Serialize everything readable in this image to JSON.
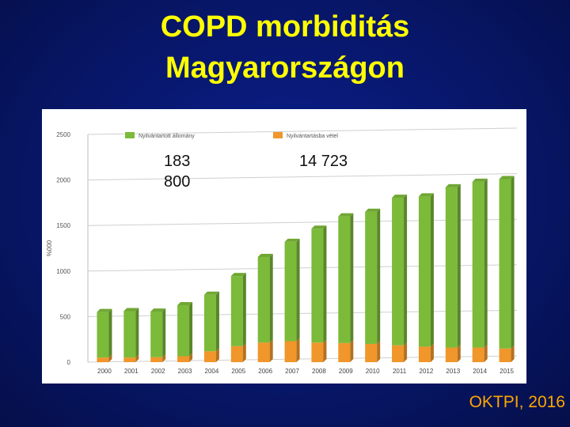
{
  "slide": {
    "title_line1": "COPD morbiditás",
    "title_line2": "Magyarországon",
    "source": "OKTPI, 2016"
  },
  "annotations": {
    "stock_total": "183 800",
    "new_cases": "14 723"
  },
  "colors": {
    "stock": "#7cba3a",
    "new_cases": "#f0962a",
    "title": "#ffff00",
    "source": "#ffa500"
  },
  "chart_data": {
    "type": "bar",
    "stacked": true,
    "ylabel": "%000",
    "ylim": [
      0,
      2500
    ],
    "yticks": [
      "0",
      "500",
      "1000",
      "1500",
      "2000",
      "2500"
    ],
    "categories": [
      "2000",
      "2001",
      "2002",
      "2003",
      "2004",
      "2005",
      "2006",
      "2007",
      "2008",
      "2009",
      "2010",
      "2011",
      "2012",
      "2013",
      "2014",
      "2015"
    ],
    "series": [
      {
        "name": "Nyilvántartott állomány",
        "values": [
          500,
          510,
          500,
          560,
          620,
          770,
          940,
          1090,
          1250,
          1390,
          1450,
          1620,
          1650,
          1760,
          1820,
          1860
        ]
      },
      {
        "name": "Nyilvántartásba vétel",
        "values": [
          50,
          50,
          55,
          65,
          120,
          175,
          215,
          230,
          215,
          210,
          200,
          185,
          170,
          160,
          160,
          150
        ]
      }
    ],
    "grid": true,
    "legend": "top"
  }
}
